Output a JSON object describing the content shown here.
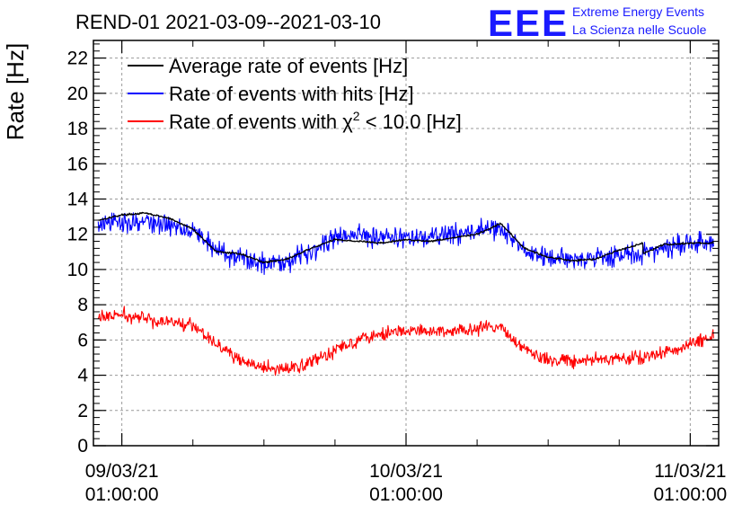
{
  "chart_data": {
    "type": "line",
    "title": "REND-01 2021-03-09--2021-03-10",
    "ylabel": "Rate [Hz]",
    "xlabel": "",
    "ylim": [
      0,
      23
    ],
    "yticks": [
      0,
      2,
      4,
      6,
      8,
      10,
      12,
      14,
      16,
      18,
      20,
      22
    ],
    "x_unit": "hours since 2021-03-09 01:00:00",
    "xlim": [
      -2.4,
      50.4
    ],
    "xticks": [
      {
        "x": 0,
        "line1": "09/03/21",
        "line2": "01:00:00"
      },
      {
        "x": 24,
        "line1": "10/03/21",
        "line2": "01:00:00"
      },
      {
        "x": 48,
        "line1": "11/03/21",
        "line2": "01:00:00"
      }
    ],
    "grid": true,
    "legend_position": "top-left",
    "series": [
      {
        "name": "Average rate of events [Hz]",
        "color": "#000000",
        "noise": 0.12,
        "x": [
          -2,
          0,
          2,
          4,
          6,
          8,
          10,
          12,
          14,
          16,
          18,
          20,
          22,
          24,
          26,
          28,
          30,
          32,
          34,
          36,
          38,
          40,
          42,
          44,
          46,
          44.01,
          46.01,
          48,
          50
        ],
        "values": [
          12.8,
          13.1,
          13.2,
          12.9,
          12.3,
          11.0,
          10.9,
          10.4,
          10.6,
          11.2,
          11.7,
          11.6,
          11.5,
          11.7,
          11.6,
          11.8,
          12.0,
          12.6,
          11.2,
          10.7,
          10.5,
          10.6,
          11.1,
          11.5,
          11.5,
          10.9,
          11.4,
          11.5,
          11.5
        ]
      },
      {
        "name": "Rate of events with hits [Hz]",
        "color": "#0000ff",
        "noise": 0.55,
        "x": [
          -2,
          0,
          2,
          4,
          6,
          8,
          10,
          12,
          14,
          16,
          18,
          20,
          22,
          24,
          26,
          28,
          30,
          32,
          34,
          36,
          38,
          40,
          42,
          44,
          46,
          48,
          50
        ],
        "values": [
          12.5,
          12.7,
          12.7,
          12.5,
          12.3,
          11.1,
          10.6,
          10.4,
          10.5,
          11.1,
          11.8,
          12.0,
          11.9,
          11.8,
          11.8,
          12.0,
          12.2,
          12.4,
          11.0,
          10.6,
          10.6,
          10.7,
          10.8,
          10.9,
          11.2,
          11.5,
          11.5
        ]
      },
      {
        "name": "Rate of events with χ² < 10.0 [Hz]",
        "color": "#ff0000",
        "noise": 0.35,
        "x": [
          -2,
          0,
          2,
          4,
          6,
          8,
          10,
          12,
          14,
          16,
          18,
          20,
          22,
          24,
          26,
          28,
          30,
          32,
          34,
          36,
          38,
          40,
          42,
          44,
          46,
          48,
          50
        ],
        "values": [
          7.3,
          7.4,
          7.2,
          7.0,
          6.9,
          5.8,
          4.8,
          4.4,
          4.3,
          4.8,
          5.4,
          6.1,
          6.4,
          6.5,
          6.5,
          6.5,
          6.6,
          6.8,
          5.4,
          4.9,
          4.8,
          4.9,
          4.9,
          5.0,
          5.3,
          5.8,
          6.2
        ]
      }
    ]
  },
  "legend": {
    "items": [
      {
        "label": "Average rate of events [Hz]",
        "color": "#000000"
      },
      {
        "label": "Rate of events with hits [Hz]",
        "color": "#0000ff"
      },
      {
        "label_pre": "Rate of events with ",
        "label_chi": "χ",
        "label_sup": "2",
        "label_post": " < 10.0 [Hz]",
        "color": "#ff0000"
      }
    ]
  },
  "logo": {
    "mark": "EEE",
    "line1": "Extreme Energy Events",
    "line2": "La Scienza nelle Scuole",
    "color": "#1a1aff"
  }
}
